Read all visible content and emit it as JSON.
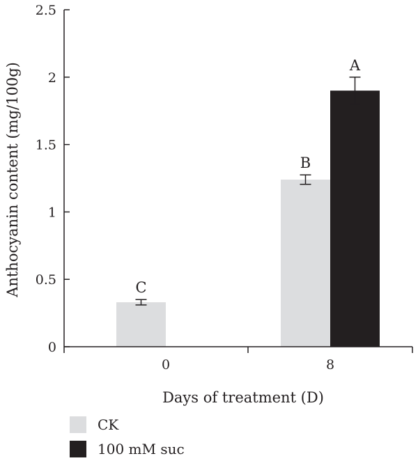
{
  "chart_data": {
    "type": "bar",
    "title": "",
    "xlabel": "Days of treatment (D)",
    "ylabel": "Anthocyanin content  (mg/100g)",
    "categories": [
      "0",
      "8"
    ],
    "ylim": [
      0,
      2.5
    ],
    "yticks": [
      "0",
      "0.5",
      "1",
      "1.5",
      "2",
      "2.5"
    ],
    "legend_position": "bottom-left",
    "grid": false,
    "series": [
      {
        "name": "CK",
        "color": "#dcdddf",
        "values": [
          0.33,
          1.24
        ],
        "errors": [
          0.02,
          0.035
        ],
        "labels": [
          "C",
          "B"
        ]
      },
      {
        "name": "100 mM suc",
        "color": "#231f20",
        "values": [
          null,
          1.9
        ],
        "errors": [
          null,
          0.1
        ],
        "labels": [
          "",
          "A"
        ]
      }
    ]
  }
}
